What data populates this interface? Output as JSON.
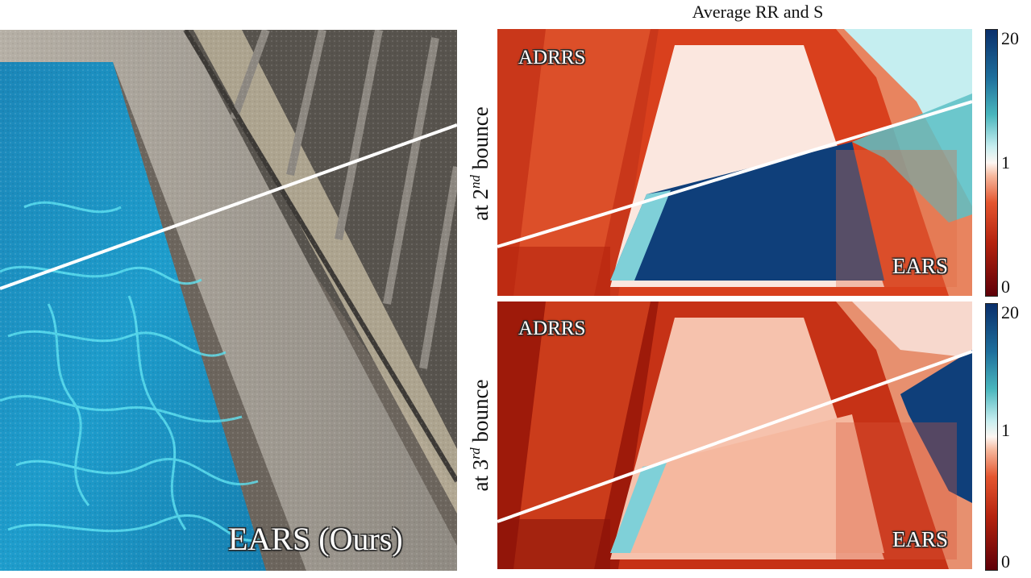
{
  "figure": {
    "title": "Average RR and S",
    "main_panel_label": "EARS (Ours)",
    "rows": [
      {
        "label_prefix": "at 2",
        "label_sup": "nd",
        "label_suffix": " bounce",
        "top_label": "ADRRS",
        "bottom_label": "EARS"
      },
      {
        "label_prefix": "at 3",
        "label_sup": "rd",
        "label_suffix": " bounce",
        "top_label": "ADRRS",
        "bottom_label": "EARS"
      }
    ],
    "colorbar": {
      "max": "20",
      "mid": "1",
      "min": "0"
    }
  },
  "colors": {
    "pool_blue": "#1a8fc2",
    "caustic": "#5fe3f2",
    "stone": "#a9a39a",
    "adrrs_red": "#e2522a",
    "ears_blue": "#0e3d78",
    "ears_pink": "#f4b9a0"
  }
}
